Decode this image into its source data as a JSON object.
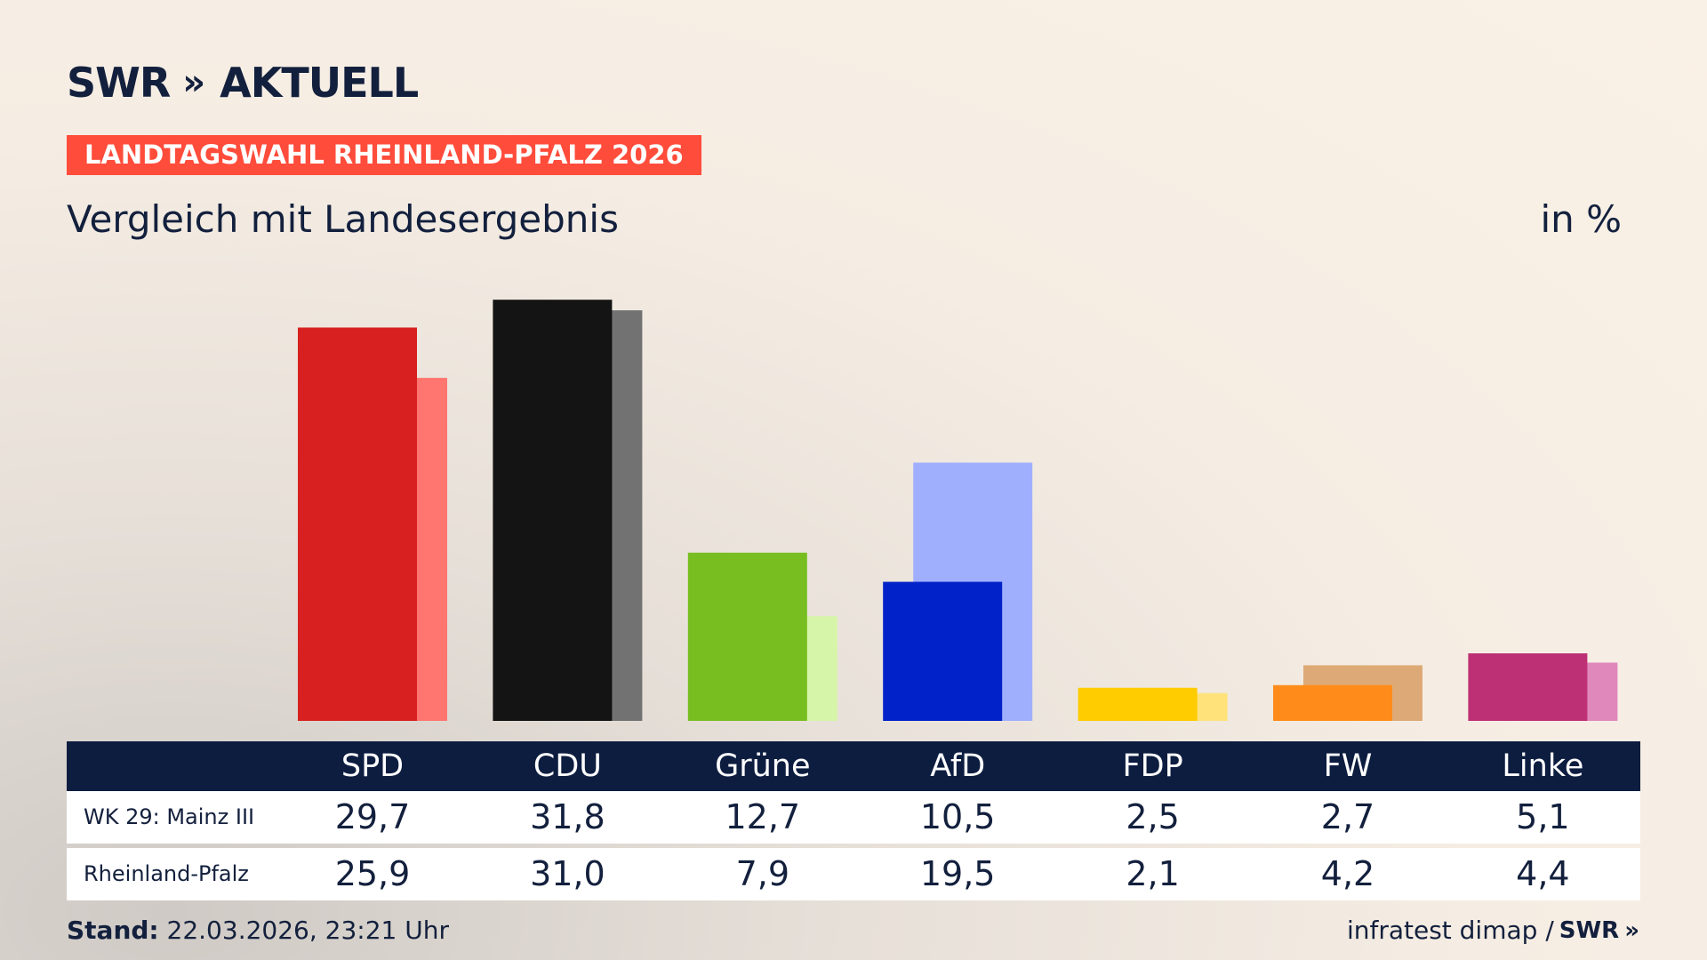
{
  "header": {
    "logo_brand": "SWR",
    "logo_chevrons": "»",
    "logo_product": "AKTUELL",
    "tag": "LANDTAGSWAHL RHEINLAND-PFALZ 2026",
    "subtitle": "Vergleich mit Landesergebnis",
    "unit": "in %"
  },
  "chart_data": {
    "type": "bar",
    "categories": [
      "SPD",
      "CDU",
      "Grüne",
      "AfD",
      "FDP",
      "FW",
      "Linke"
    ],
    "series": [
      {
        "name": "WK 29: Mainz III",
        "values": [
          29.7,
          31.8,
          12.7,
          10.5,
          2.5,
          2.7,
          5.1
        ]
      },
      {
        "name": "Rheinland-Pfalz",
        "values": [
          25.9,
          31.0,
          7.9,
          19.5,
          2.1,
          4.2,
          4.4
        ]
      }
    ],
    "colors_primary": [
      "#d7201f",
      "#141414",
      "#78be20",
      "#0022c8",
      "#ffcc00",
      "#ff8c1a",
      "#be3075"
    ],
    "colors_secondary": [
      "#ff7570",
      "#727272",
      "#d7f5a8",
      "#9faffe",
      "#ffe27a",
      "#ddaa77",
      "#e088bb"
    ],
    "grid": false,
    "legend": "table-below"
  },
  "table": {
    "rows": [
      {
        "label": "WK 29: Mainz III",
        "values": [
          "29,7",
          "31,8",
          "12,7",
          "10,5",
          "2,5",
          "2,7",
          "5,1"
        ]
      },
      {
        "label": "Rheinland-Pfalz",
        "values": [
          "25,9",
          "31,0",
          "7,9",
          "19,5",
          "2,1",
          "4,2",
          "4,4"
        ]
      }
    ]
  },
  "footer": {
    "stand_label": "Stand:",
    "stand_value": "22.03.2026, 23:21 Uhr",
    "source": "infratest dimap /",
    "source_brand": "SWR",
    "source_chevrons": "»"
  }
}
